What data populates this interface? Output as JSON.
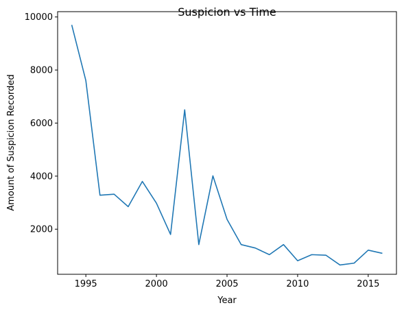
{
  "chart_data": {
    "type": "line",
    "title": "Suspicion vs Time",
    "xlabel": "Year",
    "ylabel": "Amount of Suspicion Recorded",
    "xlim": [
      1993,
      2017
    ],
    "ylim": [
      300,
      10200
    ],
    "xticks": [
      1995,
      2000,
      2005,
      2010,
      2015
    ],
    "yticks": [
      2000,
      4000,
      6000,
      8000,
      10000
    ],
    "grid": false,
    "series": [
      {
        "color": "#1f77b4",
        "x": [
          1994,
          1995,
          1996,
          1997,
          1998,
          1999,
          2000,
          2001,
          2002,
          2003,
          2004,
          2005,
          2006,
          2007,
          2008,
          2009,
          2010,
          2011,
          2012,
          2013,
          2014,
          2015,
          2016
        ],
        "y": [
          9700,
          7600,
          3280,
          3320,
          2850,
          3800,
          2980,
          1800,
          6500,
          1420,
          4010,
          2370,
          1420,
          1290,
          1040,
          1420,
          810,
          1040,
          1020,
          650,
          720,
          1210,
          1090
        ]
      }
    ]
  }
}
